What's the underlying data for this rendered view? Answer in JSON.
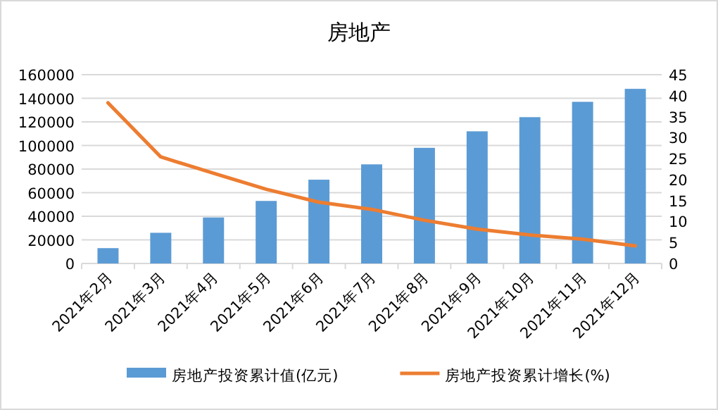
{
  "chart_data": {
    "type": "bar",
    "title": "房地产",
    "categories": [
      "2021年2月",
      "2021年3月",
      "2021年4月",
      "2021年5月",
      "2021年6月",
      "2021年7月",
      "2021年8月",
      "2021年9月",
      "2021年10月",
      "2021年11月",
      "2021年12月"
    ],
    "series": [
      {
        "name": "房地产投资累计值(亿元)",
        "color": "#5b9bd5",
        "values": [
          13000,
          26000,
          39000,
          53000,
          71000,
          84000,
          98000,
          112000,
          124000,
          137000,
          148000
        ]
      },
      {
        "name": "房地产投资累计增长(%)",
        "type": "line",
        "axis": "y2",
        "color": "#ed7d31",
        "values": [
          38.3,
          25.4,
          21.5,
          17.7,
          14.6,
          12.9,
          10.3,
          8.2,
          6.8,
          5.8,
          4.2
        ]
      }
    ],
    "ylim": [
      0,
      160000
    ],
    "yticks": [
      0,
      20000,
      40000,
      60000,
      80000,
      100000,
      120000,
      140000,
      160000
    ],
    "y2lim": [
      0,
      45
    ],
    "y2ticks": [
      0,
      5,
      10,
      15,
      20,
      25,
      30,
      35,
      40,
      45
    ],
    "grid": "y",
    "legend": "bottom"
  }
}
